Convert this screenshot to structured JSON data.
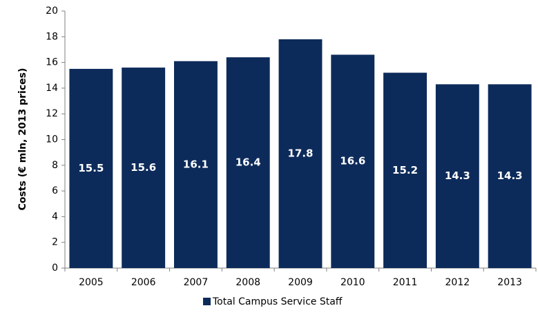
{
  "chart_data": {
    "type": "bar",
    "y_label": "Costs (€ mln, 2013 prices)",
    "categories": [
      "2005",
      "2006",
      "2007",
      "2008",
      "2009",
      "2010",
      "2011",
      "2012",
      "2013"
    ],
    "series": [
      {
        "name": "Total Campus Service Staff",
        "color": "#0d2b5a",
        "values": [
          15.5,
          15.6,
          16.1,
          16.4,
          17.8,
          16.6,
          15.2,
          14.3,
          14.3
        ]
      }
    ],
    "ylim": [
      0,
      20
    ],
    "yticks": [
      0,
      2,
      4,
      6,
      8,
      10,
      12,
      14,
      16,
      18,
      20
    ],
    "legend": "bottom"
  }
}
